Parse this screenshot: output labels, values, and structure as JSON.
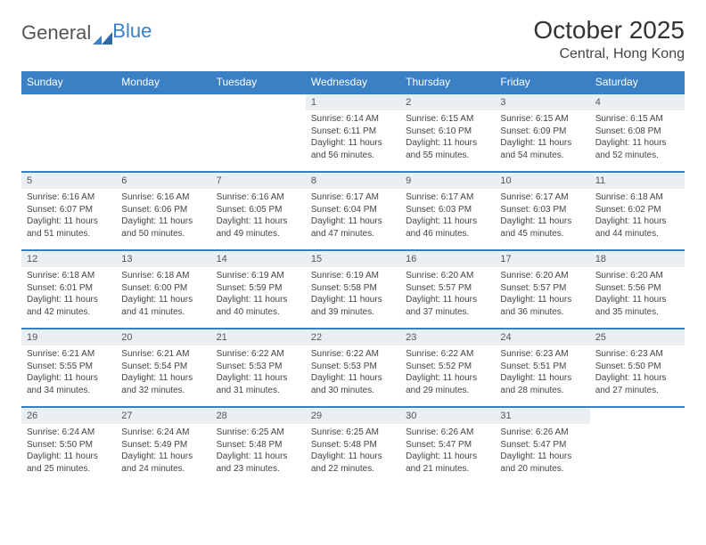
{
  "brand": {
    "part1": "General",
    "part2": "Blue"
  },
  "title": "October 2025",
  "location": "Central, Hong Kong",
  "colors": {
    "header_bg": "#3b7fc4",
    "header_text": "#ffffff",
    "daynum_bg": "#eceff1",
    "border": "#3b7fc4",
    "text": "#444444",
    "page_bg": "#ffffff"
  },
  "day_headers": [
    "Sunday",
    "Monday",
    "Tuesday",
    "Wednesday",
    "Thursday",
    "Friday",
    "Saturday"
  ],
  "weeks": [
    [
      {
        "n": "",
        "lines": []
      },
      {
        "n": "",
        "lines": []
      },
      {
        "n": "",
        "lines": []
      },
      {
        "n": "1",
        "lines": [
          "Sunrise: 6:14 AM",
          "Sunset: 6:11 PM",
          "Daylight: 11 hours",
          "and 56 minutes."
        ]
      },
      {
        "n": "2",
        "lines": [
          "Sunrise: 6:15 AM",
          "Sunset: 6:10 PM",
          "Daylight: 11 hours",
          "and 55 minutes."
        ]
      },
      {
        "n": "3",
        "lines": [
          "Sunrise: 6:15 AM",
          "Sunset: 6:09 PM",
          "Daylight: 11 hours",
          "and 54 minutes."
        ]
      },
      {
        "n": "4",
        "lines": [
          "Sunrise: 6:15 AM",
          "Sunset: 6:08 PM",
          "Daylight: 11 hours",
          "and 52 minutes."
        ]
      }
    ],
    [
      {
        "n": "5",
        "lines": [
          "Sunrise: 6:16 AM",
          "Sunset: 6:07 PM",
          "Daylight: 11 hours",
          "and 51 minutes."
        ]
      },
      {
        "n": "6",
        "lines": [
          "Sunrise: 6:16 AM",
          "Sunset: 6:06 PM",
          "Daylight: 11 hours",
          "and 50 minutes."
        ]
      },
      {
        "n": "7",
        "lines": [
          "Sunrise: 6:16 AM",
          "Sunset: 6:05 PM",
          "Daylight: 11 hours",
          "and 49 minutes."
        ]
      },
      {
        "n": "8",
        "lines": [
          "Sunrise: 6:17 AM",
          "Sunset: 6:04 PM",
          "Daylight: 11 hours",
          "and 47 minutes."
        ]
      },
      {
        "n": "9",
        "lines": [
          "Sunrise: 6:17 AM",
          "Sunset: 6:03 PM",
          "Daylight: 11 hours",
          "and 46 minutes."
        ]
      },
      {
        "n": "10",
        "lines": [
          "Sunrise: 6:17 AM",
          "Sunset: 6:03 PM",
          "Daylight: 11 hours",
          "and 45 minutes."
        ]
      },
      {
        "n": "11",
        "lines": [
          "Sunrise: 6:18 AM",
          "Sunset: 6:02 PM",
          "Daylight: 11 hours",
          "and 44 minutes."
        ]
      }
    ],
    [
      {
        "n": "12",
        "lines": [
          "Sunrise: 6:18 AM",
          "Sunset: 6:01 PM",
          "Daylight: 11 hours",
          "and 42 minutes."
        ]
      },
      {
        "n": "13",
        "lines": [
          "Sunrise: 6:18 AM",
          "Sunset: 6:00 PM",
          "Daylight: 11 hours",
          "and 41 minutes."
        ]
      },
      {
        "n": "14",
        "lines": [
          "Sunrise: 6:19 AM",
          "Sunset: 5:59 PM",
          "Daylight: 11 hours",
          "and 40 minutes."
        ]
      },
      {
        "n": "15",
        "lines": [
          "Sunrise: 6:19 AM",
          "Sunset: 5:58 PM",
          "Daylight: 11 hours",
          "and 39 minutes."
        ]
      },
      {
        "n": "16",
        "lines": [
          "Sunrise: 6:20 AM",
          "Sunset: 5:57 PM",
          "Daylight: 11 hours",
          "and 37 minutes."
        ]
      },
      {
        "n": "17",
        "lines": [
          "Sunrise: 6:20 AM",
          "Sunset: 5:57 PM",
          "Daylight: 11 hours",
          "and 36 minutes."
        ]
      },
      {
        "n": "18",
        "lines": [
          "Sunrise: 6:20 AM",
          "Sunset: 5:56 PM",
          "Daylight: 11 hours",
          "and 35 minutes."
        ]
      }
    ],
    [
      {
        "n": "19",
        "lines": [
          "Sunrise: 6:21 AM",
          "Sunset: 5:55 PM",
          "Daylight: 11 hours",
          "and 34 minutes."
        ]
      },
      {
        "n": "20",
        "lines": [
          "Sunrise: 6:21 AM",
          "Sunset: 5:54 PM",
          "Daylight: 11 hours",
          "and 32 minutes."
        ]
      },
      {
        "n": "21",
        "lines": [
          "Sunrise: 6:22 AM",
          "Sunset: 5:53 PM",
          "Daylight: 11 hours",
          "and 31 minutes."
        ]
      },
      {
        "n": "22",
        "lines": [
          "Sunrise: 6:22 AM",
          "Sunset: 5:53 PM",
          "Daylight: 11 hours",
          "and 30 minutes."
        ]
      },
      {
        "n": "23",
        "lines": [
          "Sunrise: 6:22 AM",
          "Sunset: 5:52 PM",
          "Daylight: 11 hours",
          "and 29 minutes."
        ]
      },
      {
        "n": "24",
        "lines": [
          "Sunrise: 6:23 AM",
          "Sunset: 5:51 PM",
          "Daylight: 11 hours",
          "and 28 minutes."
        ]
      },
      {
        "n": "25",
        "lines": [
          "Sunrise: 6:23 AM",
          "Sunset: 5:50 PM",
          "Daylight: 11 hours",
          "and 27 minutes."
        ]
      }
    ],
    [
      {
        "n": "26",
        "lines": [
          "Sunrise: 6:24 AM",
          "Sunset: 5:50 PM",
          "Daylight: 11 hours",
          "and 25 minutes."
        ]
      },
      {
        "n": "27",
        "lines": [
          "Sunrise: 6:24 AM",
          "Sunset: 5:49 PM",
          "Daylight: 11 hours",
          "and 24 minutes."
        ]
      },
      {
        "n": "28",
        "lines": [
          "Sunrise: 6:25 AM",
          "Sunset: 5:48 PM",
          "Daylight: 11 hours",
          "and 23 minutes."
        ]
      },
      {
        "n": "29",
        "lines": [
          "Sunrise: 6:25 AM",
          "Sunset: 5:48 PM",
          "Daylight: 11 hours",
          "and 22 minutes."
        ]
      },
      {
        "n": "30",
        "lines": [
          "Sunrise: 6:26 AM",
          "Sunset: 5:47 PM",
          "Daylight: 11 hours",
          "and 21 minutes."
        ]
      },
      {
        "n": "31",
        "lines": [
          "Sunrise: 6:26 AM",
          "Sunset: 5:47 PM",
          "Daylight: 11 hours",
          "and 20 minutes."
        ]
      },
      {
        "n": "",
        "lines": []
      }
    ]
  ]
}
